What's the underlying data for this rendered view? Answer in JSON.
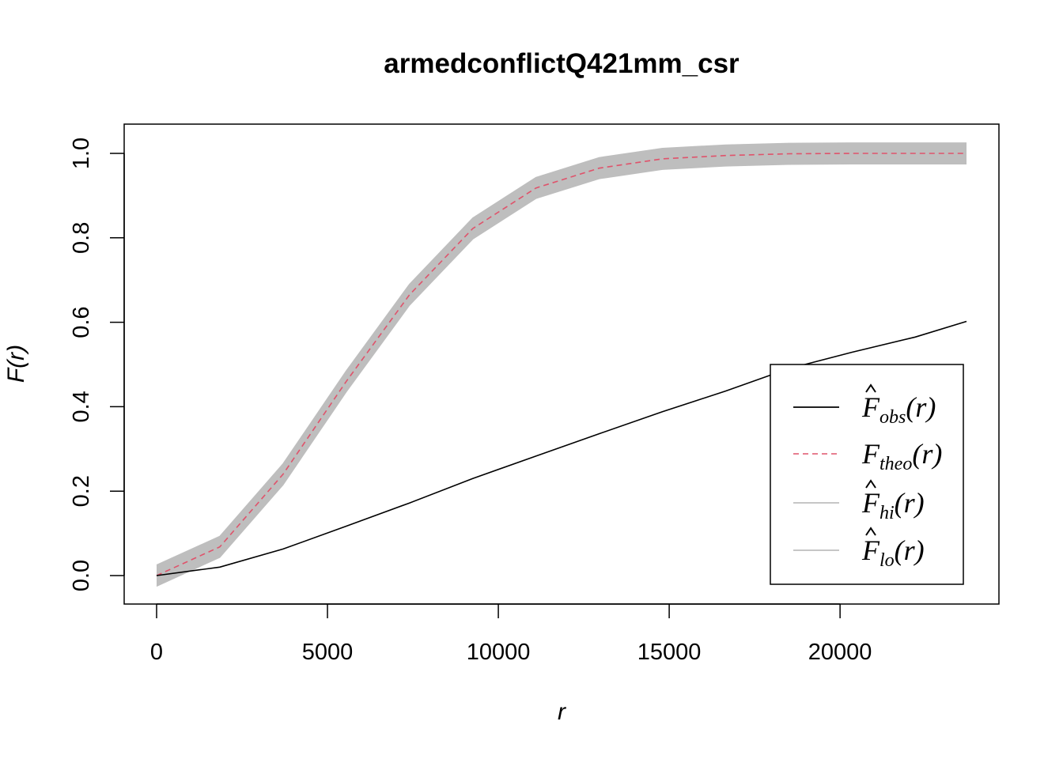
{
  "chart_data": {
    "type": "line",
    "title": "armedconflictQ421mm_csr",
    "xlabel": "r",
    "ylabel": "F(r)",
    "xlim": [
      0,
      23700
    ],
    "ylim": [
      0,
      1
    ],
    "x_ticks": [
      0,
      5000,
      10000,
      15000,
      20000
    ],
    "y_ticks": [
      0.0,
      0.2,
      0.4,
      0.6,
      0.8,
      1.0
    ],
    "x_tick_labels": [
      "0",
      "5000",
      "10000",
      "15000",
      "20000"
    ],
    "y_tick_labels": [
      "0.0",
      "0.2",
      "0.4",
      "0.6",
      "0.8",
      "1.0"
    ],
    "x": [
      0,
      1850,
      3700,
      5550,
      7400,
      9250,
      11100,
      12950,
      14800,
      16650,
      18500,
      20350,
      22200,
      23700
    ],
    "series": [
      {
        "name": "obs",
        "style": "solid",
        "color": "#000000",
        "values": [
          0.0,
          0.02,
          0.063,
          0.117,
          0.172,
          0.23,
          0.283,
          0.336,
          0.388,
          0.437,
          0.49,
          0.529,
          0.565,
          0.602
        ]
      },
      {
        "name": "theo",
        "style": "dashed",
        "color": "#DF536B",
        "values": [
          0.0,
          0.068,
          0.24,
          0.46,
          0.665,
          0.822,
          0.918,
          0.965,
          0.987,
          0.995,
          0.999,
          1.0,
          1.0,
          1.0
        ]
      },
      {
        "name": "hi",
        "style": "envelope",
        "color": "#BEBEBE",
        "values": [
          0.025,
          0.093,
          0.265,
          0.485,
          0.69,
          0.847,
          0.943,
          0.99,
          1.012,
          1.02,
          1.024,
          1.025,
          1.025,
          1.025
        ]
      },
      {
        "name": "lo",
        "style": "envelope",
        "color": "#BEBEBE",
        "values": [
          -0.025,
          0.043,
          0.215,
          0.435,
          0.64,
          0.797,
          0.893,
          0.94,
          0.962,
          0.97,
          0.974,
          0.975,
          0.975,
          0.975
        ]
      }
    ],
    "legend": {
      "position": "bottom-right",
      "entries": [
        {
          "base": "F",
          "hat": true,
          "sub": "obs",
          "arg": "(r)",
          "color": "#000000",
          "style": "solid"
        },
        {
          "base": "F",
          "hat": false,
          "sub": "theo",
          "arg": "(r)",
          "color": "#DF536B",
          "style": "dashed"
        },
        {
          "base": "F",
          "hat": true,
          "sub": "hi",
          "arg": "(r)",
          "color": "#BEBEBE",
          "style": "solid"
        },
        {
          "base": "F",
          "hat": true,
          "sub": "lo",
          "arg": "(r)",
          "color": "#BEBEBE",
          "style": "solid"
        }
      ]
    },
    "grid": false
  }
}
